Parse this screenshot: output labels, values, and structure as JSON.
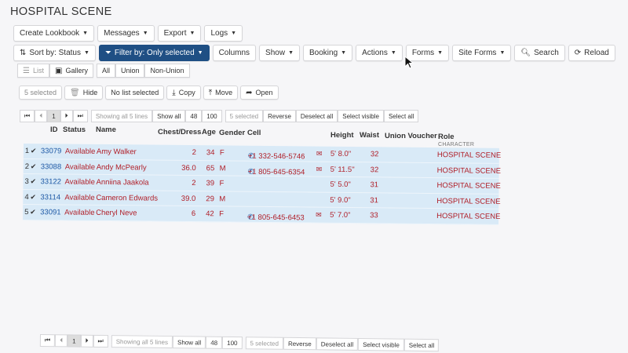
{
  "page_title": "HOSPITAL SCENE",
  "toolbar1": [
    {
      "label": "Create Lookbook"
    },
    {
      "label": "Messages"
    },
    {
      "label": "Export"
    },
    {
      "label": "Logs"
    }
  ],
  "toolbar2": {
    "sort_label": "Sort by: Status",
    "filter_label": "Filter by: Only selected",
    "columns_label": "Columns",
    "show_label": "Show",
    "booking_label": "Booking",
    "actions_label": "Actions",
    "forms_label": "Forms",
    "site_forms_label": "Site Forms",
    "search_label": "Search",
    "reload_label": "Reload"
  },
  "view": {
    "list_label": "List",
    "gallery_label": "Gallery",
    "all_label": "All",
    "union_label": "Union",
    "non_union_label": "Non-Union"
  },
  "actions_bar": {
    "selected_label": "5 selected",
    "hide_label": "Hide",
    "no_list_label": "No list selected",
    "copy_label": "Copy",
    "move_label": "Move",
    "open_label": "Open"
  },
  "pager": {
    "first": "⏮",
    "prev": "⏴",
    "page": "1",
    "next": "⏵",
    "last": "⏭",
    "showing_label": "Showing all 5 lines",
    "show_all_label": "Show all",
    "size_48": "48",
    "size_100": "100",
    "selected_label": "5 selected",
    "reverse_label": "Reverse",
    "deselect_label": "Deselect all",
    "select_visible_label": "Select visible",
    "select_all_label": "Select all"
  },
  "columns": {
    "id": "ID",
    "status": "Status",
    "name": "Name",
    "chest": "Chest/Dress",
    "age": "Age",
    "gender": "Gender",
    "cell": "Cell",
    "height": "Height",
    "waist": "Waist",
    "union_voucher": "Union Voucher",
    "role": "Role",
    "role_sub": "CHARACTER"
  },
  "rows": [
    {
      "num": "1",
      "id": "33079",
      "status": "Available",
      "name": "Amy Walker",
      "chest": "2",
      "age": "34",
      "gender": "F",
      "cell": "+1 332-546-5746",
      "height": "5' 8.0\"",
      "waist": "32",
      "role": "HOSPITAL SCENE"
    },
    {
      "num": "2",
      "id": "33088",
      "status": "Available",
      "name": "Andy McPearly",
      "chest": "36.0",
      "age": "65",
      "gender": "M",
      "cell": "+1 805-645-6354",
      "height": "5' 11.5\"",
      "waist": "32",
      "role": "HOSPITAL SCENE"
    },
    {
      "num": "3",
      "id": "33122",
      "status": "Available",
      "name": "Anniina Jaakola",
      "chest": "2",
      "age": "39",
      "gender": "F",
      "cell": "",
      "height": "5' 5.0\"",
      "waist": "31",
      "role": "HOSPITAL SCENE"
    },
    {
      "num": "4",
      "id": "33114",
      "status": "Available",
      "name": "Cameron Edwards",
      "chest": "39.0",
      "age": "29",
      "gender": "M",
      "cell": "",
      "height": "5' 9.0\"",
      "waist": "31",
      "role": "HOSPITAL SCENE"
    },
    {
      "num": "5",
      "id": "33091",
      "status": "Available",
      "name": "Cheryl Neve",
      "chest": "6",
      "age": "42",
      "gender": "F",
      "cell": "+1 805-645-6453",
      "height": "5' 7.0\"",
      "waist": "33",
      "role": "HOSPITAL SCENE"
    }
  ],
  "colors": {
    "primary": "#1f4f84",
    "row_bg": "#d9eaf7",
    "value_red": "#b0202a",
    "link_blue": "#1f5aa6"
  }
}
